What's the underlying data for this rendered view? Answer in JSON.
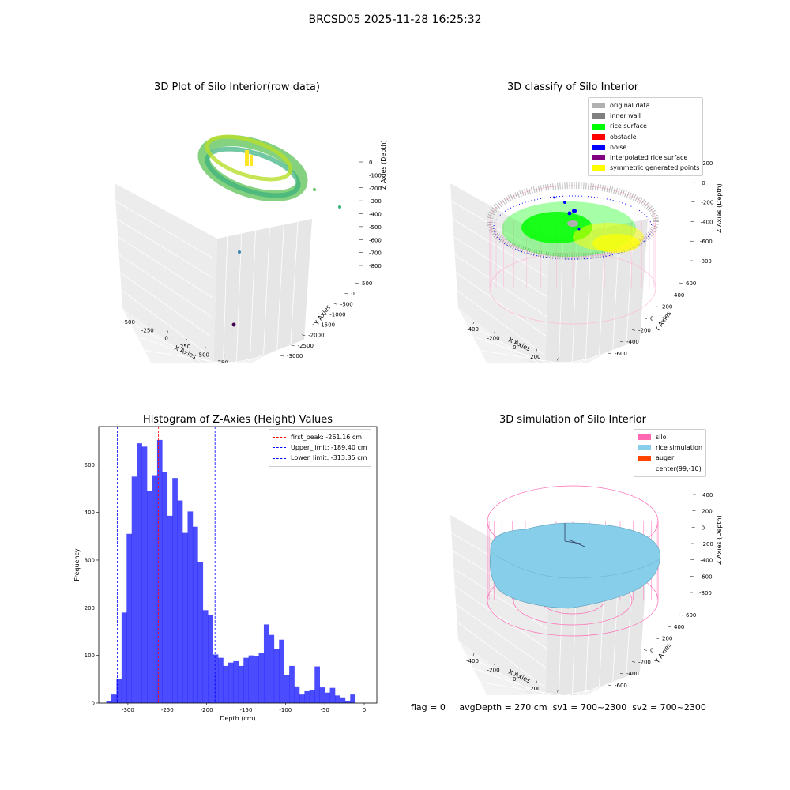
{
  "suptitle": "BRCSD05 2025-11-28 16:25:32",
  "plots": {
    "raw": {
      "title": "3D Plot of Silo Interior(row data)",
      "xlabel": "X Axies",
      "ylabel": "Y Axies",
      "zlabel": "Z Axies (Depth)",
      "xticks": [
        "-500",
        "-250",
        "0",
        "250",
        "500",
        "750",
        "1000"
      ],
      "yticks": [
        "500",
        "0",
        "-500",
        "-1000",
        "-1500",
        "-2000",
        "-2500",
        "-3000"
      ],
      "zticks": [
        "0",
        "-100",
        "-200",
        "-300",
        "-400",
        "-500",
        "-600",
        "-700",
        "-800"
      ]
    },
    "classify": {
      "title": "3D classify of Silo Interior",
      "xlabel": "X Axies",
      "ylabel": "Y Axies",
      "zlabel": "Z Axies (Depth)",
      "xticks": [
        "-400",
        "-200",
        "0",
        "200",
        "400",
        "600"
      ],
      "yticks": [
        "600",
        "400",
        "200",
        "0",
        "-200",
        "-400",
        "-600"
      ],
      "zticks": [
        "200",
        "0",
        "-200",
        "-400",
        "-600",
        "-800"
      ],
      "legend": [
        {
          "label": "original data",
          "color": "#b0b0b0"
        },
        {
          "label": "inner wall",
          "color": "#808080"
        },
        {
          "label": "rice surface",
          "color": "#00ff00"
        },
        {
          "label": "obstacle",
          "color": "#ff0000"
        },
        {
          "label": "noise",
          "color": "#0000ff"
        },
        {
          "label": "interpolated rice surface",
          "color": "#800080"
        },
        {
          "label": "symmetric generated points",
          "color": "#ffff00"
        }
      ]
    },
    "simulation": {
      "title": "3D simulation of Silo Interior",
      "xlabel": "X Axies",
      "ylabel": "Y Axies",
      "zlabel": "Z Axies (Depth)",
      "xticks": [
        "-400",
        "-200",
        "0",
        "200",
        "400",
        "600"
      ],
      "yticks": [
        "600",
        "400",
        "200",
        "0",
        "-200",
        "-400",
        "-600"
      ],
      "zticks": [
        "400",
        "200",
        "0",
        "-200",
        "-400",
        "-600",
        "-800"
      ],
      "legend": [
        {
          "label": "silo",
          "color": "#ff69b4"
        },
        {
          "label": "rice simulation",
          "color": "#87ceeb"
        },
        {
          "label": "auger",
          "color": "#ff4500"
        },
        {
          "label": "center(99,-10)",
          "color": "#ffffff"
        }
      ]
    }
  },
  "chart_data": {
    "type": "bar",
    "title": "Histogram of Z-Axies (Height) Values",
    "xlabel": "Depth (cm)",
    "ylabel": "Frequency",
    "xlim": [
      -337,
      16
    ],
    "ylim": [
      0,
      580
    ],
    "xticks": [
      "-300",
      "-250",
      "-200",
      "-150",
      "-100",
      "-50",
      "0"
    ],
    "yticks": [
      "0",
      "100",
      "200",
      "300",
      "400",
      "500"
    ],
    "bar_color": "#0000ff",
    "bin_start": -327.4,
    "bin_width": 6.45,
    "values": [
      5,
      18,
      50,
      190,
      355,
      475,
      545,
      538,
      445,
      478,
      552,
      485,
      393,
      472,
      425,
      357,
      402,
      370,
      296,
      195,
      185,
      102,
      95,
      78,
      85,
      88,
      78,
      95,
      100,
      98,
      105,
      165,
      143,
      113,
      133,
      58,
      78,
      35,
      18,
      25,
      28,
      77,
      33,
      22,
      32,
      16,
      12,
      5,
      18
    ],
    "vlines": [
      {
        "x": -261.16,
        "label": "first_peak: -261.16 cm",
        "color": "#ff0000"
      },
      {
        "x": -189.4,
        "label": "Upper_limit: -189.40 cm",
        "color": "#0000ff"
      },
      {
        "x": -313.35,
        "label": "Lower_limit: -313.35 cm",
        "color": "#0000ff"
      }
    ],
    "legend_position": "top-right"
  },
  "footer": {
    "flag": "flag = 0",
    "avg": "avgDepth = 270 cm",
    "sv1": "sv1 = 700~2300",
    "sv2": "sv2 = 700~2300"
  }
}
